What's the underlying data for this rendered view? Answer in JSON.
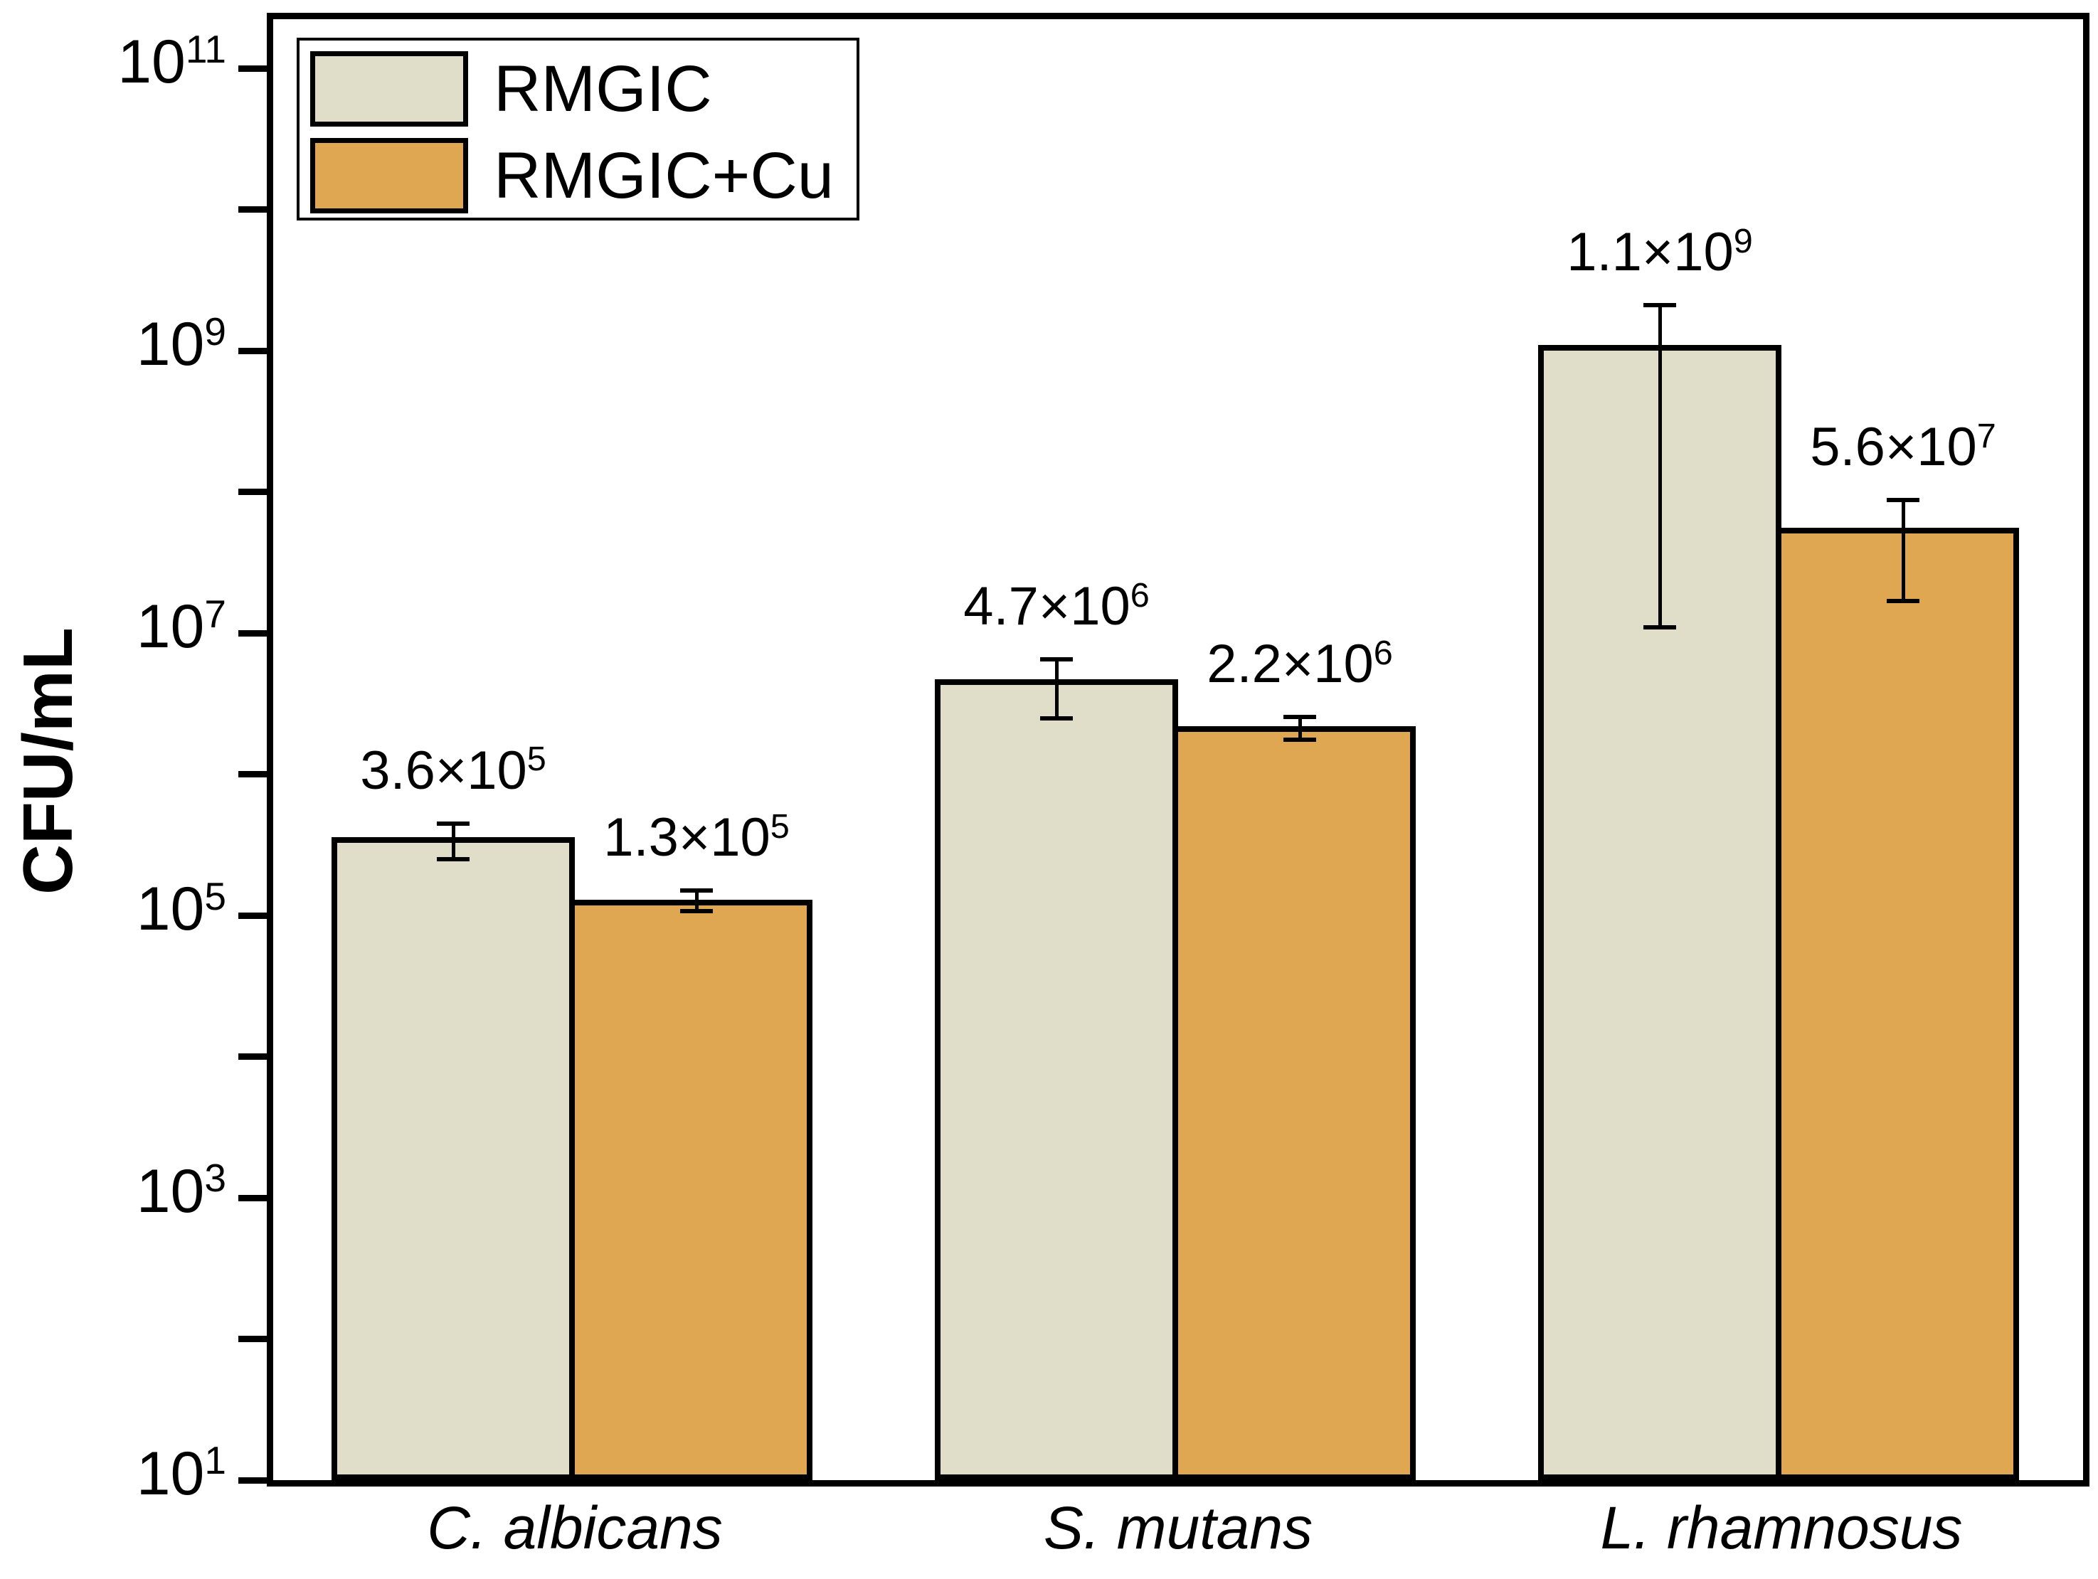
{
  "figure": {
    "background": "#ffffff",
    "frame_color": "#000000"
  },
  "chart_data": {
    "type": "bar",
    "title": "",
    "xlabel": "",
    "ylabel": "CFU/mL",
    "y_scale": "log",
    "ylog_range": [
      1,
      11.35
    ],
    "grid": false,
    "y_ticks": {
      "all_exponents": [
        1,
        2,
        3,
        4,
        5,
        6,
        7,
        8,
        9,
        10,
        11
      ],
      "labeled": [
        {
          "exponent": 11,
          "label": "10^11"
        },
        {
          "exponent": 9,
          "label": "10^9"
        },
        {
          "exponent": 7,
          "label": "10^7"
        },
        {
          "exponent": 5,
          "label": "10^5"
        },
        {
          "exponent": 3,
          "label": "10^3"
        },
        {
          "exponent": 1,
          "label": "10^1"
        }
      ]
    },
    "categories": [
      "C. albicans",
      "S. mutans",
      "L. rhamnosus"
    ],
    "series": [
      {
        "name": "RMGIC",
        "color": "#e0ddc9",
        "border_color": "#000000",
        "values": [
          360000,
          4700000,
          1100000000
        ],
        "value_labels": [
          "3.6×10^5",
          "4.7×10^6",
          "1.1×10^9"
        ],
        "error_high": [
          450000,
          6500000,
          2100000000
        ],
        "error_low": [
          250000,
          2500000,
          11000000
        ]
      },
      {
        "name": "RMGIC+Cu",
        "color": "#dfa751",
        "border_color": "#000000",
        "values": [
          130000,
          2200000,
          56000000
        ],
        "value_labels": [
          "1.3×10^5",
          "2.2×10^6",
          "5.6×10^7"
        ],
        "error_high": [
          150000,
          2550000,
          88000000
        ],
        "error_low": [
          108000,
          1750000,
          17000000
        ]
      }
    ],
    "legend": {
      "position": "top-left",
      "entries": [
        "RMGIC",
        "RMGIC+Cu"
      ]
    }
  }
}
